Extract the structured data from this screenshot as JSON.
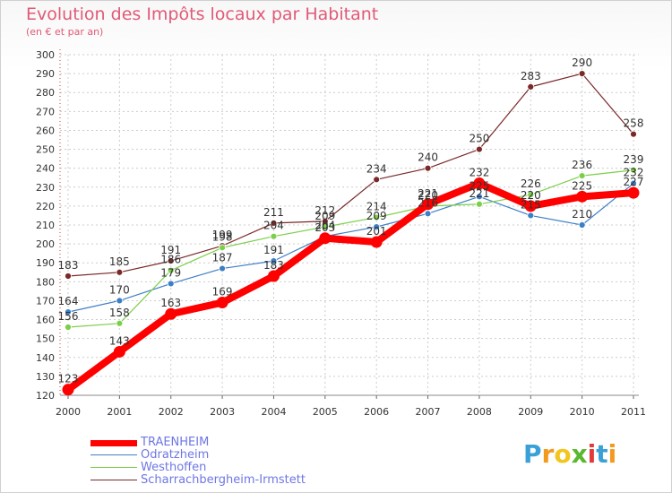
{
  "title": "Evolution des Impôts locaux par Habitant",
  "subtitle": "(en € et par an)",
  "logo": {
    "letters": [
      "P",
      "r",
      "o",
      "x",
      "i",
      "t",
      "i"
    ],
    "colors": [
      "#3aa0d8",
      "#f29a1e",
      "#f2c61e",
      "#5ab82e",
      "#e23b3b",
      "#3aa0d8",
      "#f29a1e"
    ]
  },
  "chart_data": {
    "type": "line",
    "title": "Evolution des Impôts locaux par Habitant",
    "subtitle": "(en € et par an)",
    "x": [
      "2000",
      "2001",
      "2002",
      "2003",
      "2004",
      "2005",
      "2006",
      "2007",
      "2008",
      "2009",
      "2010",
      "2011"
    ],
    "ylim": [
      120,
      300
    ],
    "yticks": [
      120,
      130,
      140,
      150,
      160,
      170,
      180,
      190,
      200,
      210,
      220,
      230,
      240,
      250,
      260,
      270,
      280,
      290,
      300
    ],
    "grid": true,
    "series": [
      {
        "name": "TRAENHEIM",
        "color": "#ff0000",
        "values": [
          123,
          143,
          163,
          169,
          183,
          203,
          201,
          221,
          232,
          220,
          225,
          227
        ],
        "labels": [
          "123",
          "143",
          "163",
          "169",
          "183",
          "203",
          "201",
          "221",
          "232",
          "220",
          "225",
          "227"
        ]
      },
      {
        "name": "Odratzheim",
        "color": "#3d7fc6",
        "values": [
          164,
          170,
          179,
          187,
          191,
          204,
          209,
          216,
          225,
          215,
          210,
          232
        ],
        "labels": [
          "164",
          "170",
          "179",
          "187",
          "191",
          "204",
          "209",
          "216",
          "225",
          "215",
          "210",
          "232"
        ]
      },
      {
        "name": "Westhoffen",
        "color": "#7ccf4a",
        "values": [
          156,
          158,
          186,
          198,
          204,
          209,
          214,
          220,
          221,
          226,
          236,
          239
        ],
        "labels": [
          "156",
          "158",
          "186",
          "198",
          "204",
          "209",
          "214",
          "220",
          "221",
          "226",
          "236",
          "239"
        ]
      },
      {
        "name": "Scharrachbergheim-Irmstett",
        "color": "#7a2828",
        "values": [
          183,
          185,
          191,
          199,
          211,
          212,
          234,
          240,
          250,
          283,
          290,
          258
        ],
        "labels": [
          "183",
          "185",
          "191",
          "199",
          "211",
          "212",
          "234",
          "240",
          "250",
          "283",
          "290",
          "258"
        ]
      }
    ]
  }
}
